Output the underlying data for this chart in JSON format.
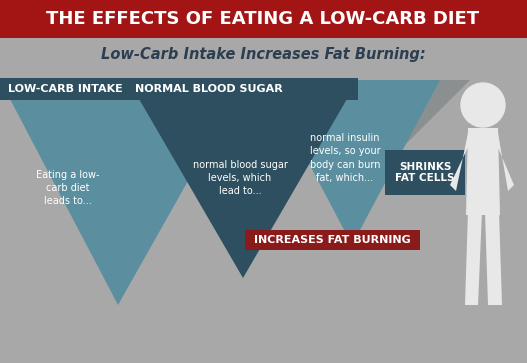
{
  "title": "THE EFFECTS OF EATING A LOW-CARB DIET",
  "subtitle": "Low-Carb Intake Increases Fat Burning:",
  "bg_color": "#a8a8a8",
  "title_bg": "#a31515",
  "title_color": "#ffffff",
  "subtitle_color": "#2c3e50",
  "teal_light": "#5b8fa0",
  "teal_dark": "#2d4f60",
  "gray_tri": "#8a9090",
  "red_bar_color": "#8b1a1a",
  "white_person": "#e8e8e8",
  "label1": "LOW-CARB INTAKE",
  "label2": "NORMAL BLOOD SUGAR",
  "label3": "INCREASES FAT BURNING",
  "label4": "SHRINKS\nFAT CELLS",
  "text1": "Eating a low-\ncarb diet\nleads to...",
  "text2": "normal blood sugar\nlevels, which\nlead to...",
  "text3": "normal insulin\nlevels, so your\nbody can burn\nfat, which...",
  "title_fontsize": 13,
  "subtitle_fontsize": 10.5
}
